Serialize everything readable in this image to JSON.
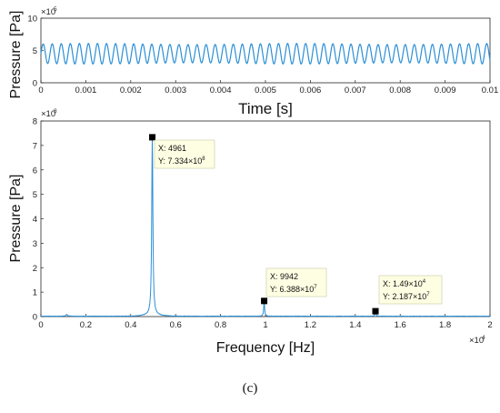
{
  "chart_data": [
    {
      "type": "line",
      "xlabel": "Time [s]",
      "ylabel": "Pressure [Pa]",
      "xlim": [
        0,
        0.01
      ],
      "ylim": [
        0,
        1000000
      ],
      "x_ticks": [
        "0",
        "0.001",
        "0.002",
        "0.003",
        "0.004",
        "0.005",
        "0.006",
        "0.007",
        "0.008",
        "0.009",
        "0.01"
      ],
      "y_ticks": [
        "0",
        "5",
        "10"
      ],
      "y_exponent": "×10⁵",
      "y_exponent_base": "×10",
      "y_exponent_power": "5",
      "series": [
        {
          "signal": {
            "mean": 450000,
            "amplitude": 150000,
            "frequency_hz": 4961
          },
          "color": "#2b8fd6"
        }
      ]
    },
    {
      "type": "line",
      "xlabel": "Frequency [Hz]",
      "ylabel": "Pressure [Pa]",
      "xlim": [
        0,
        20000
      ],
      "ylim": [
        0,
        800000000
      ],
      "x_ticks": [
        "0",
        "0.2",
        "0.4",
        "0.6",
        "0.8",
        "1",
        "1.2",
        "1.4",
        "1.6",
        "1.8",
        "2"
      ],
      "x_exponent": "×10⁴",
      "x_exponent_base": "×10",
      "x_exponent_power": "4",
      "y_ticks": [
        "0",
        "1",
        "2",
        "3",
        "4",
        "5",
        "6",
        "7",
        "8"
      ],
      "y_exponent": "×10⁸",
      "y_exponent_base": "×10",
      "y_exponent_power": "8",
      "series": [
        {
          "peaks": [
            {
              "x": 4961,
              "y": 733400000
            },
            {
              "x": 9942,
              "y": 63880000
            },
            {
              "x": 14900,
              "y": 21870000
            },
            {
              "x": 1150,
              "y": 7000000
            }
          ],
          "color": "#2b8fd6"
        }
      ],
      "annotations": [
        {
          "x": 4961,
          "y": 733400000,
          "x_text": "X: 4961",
          "y_text": "Y: 7.334×10",
          "y_power": "8"
        },
        {
          "x": 9942,
          "y": 63880000,
          "x_text": "X: 9942",
          "y_text": "Y: 6.388×10",
          "y_power": "7"
        },
        {
          "x": 14900,
          "y": 21870000,
          "x_text": "X: 1.49×10",
          "x_power": "4",
          "y_text": "Y: 2.187×10",
          "y_power": "7"
        }
      ]
    }
  ],
  "caption": "(c)"
}
